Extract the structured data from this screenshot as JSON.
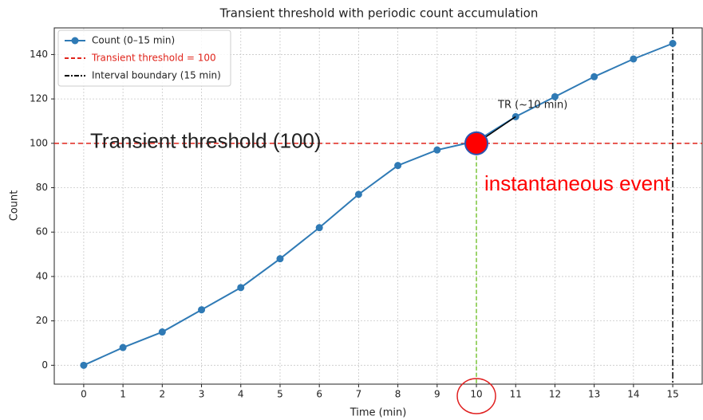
{
  "chart_data": {
    "type": "line",
    "title": "Transient threshold with periodic count accumulation",
    "x_label": "Time (min)",
    "y_label": "Count",
    "x": [
      0,
      1,
      2,
      3,
      4,
      5,
      6,
      7,
      8,
      9,
      10,
      11,
      12,
      13,
      14,
      15
    ],
    "series": [
      {
        "name": "Count (0–15 min)",
        "color": "#2f7ab5",
        "values": [
          0,
          8,
          15,
          25,
          35,
          48,
          62,
          77,
          90,
          97,
          101,
          112,
          121,
          130,
          138,
          145
        ]
      }
    ],
    "threshold": {
      "name": "Transient threshold = 100",
      "value": 100,
      "color": "#e0241b"
    },
    "boundary": {
      "name": "Interval boundary (15 min)",
      "value": 15,
      "color": "#000000"
    },
    "event": {
      "x": 10,
      "y": 100,
      "color": "#ff0000"
    },
    "annotations": {
      "threshold_text": "Transient threshold (100)",
      "event_text": "instantaneous event",
      "tr_text": "TR (~10 min)"
    },
    "xlim": [
      -0.75,
      15.75
    ],
    "ylim": [
      -8.5,
      152
    ],
    "xticks": [
      0,
      1,
      2,
      3,
      4,
      5,
      6,
      7,
      8,
      9,
      10,
      11,
      12,
      13,
      14,
      15
    ],
    "yticks": [
      0,
      20,
      40,
      60,
      80,
      100,
      120,
      140
    ],
    "grid": true,
    "legend": "upper left"
  }
}
